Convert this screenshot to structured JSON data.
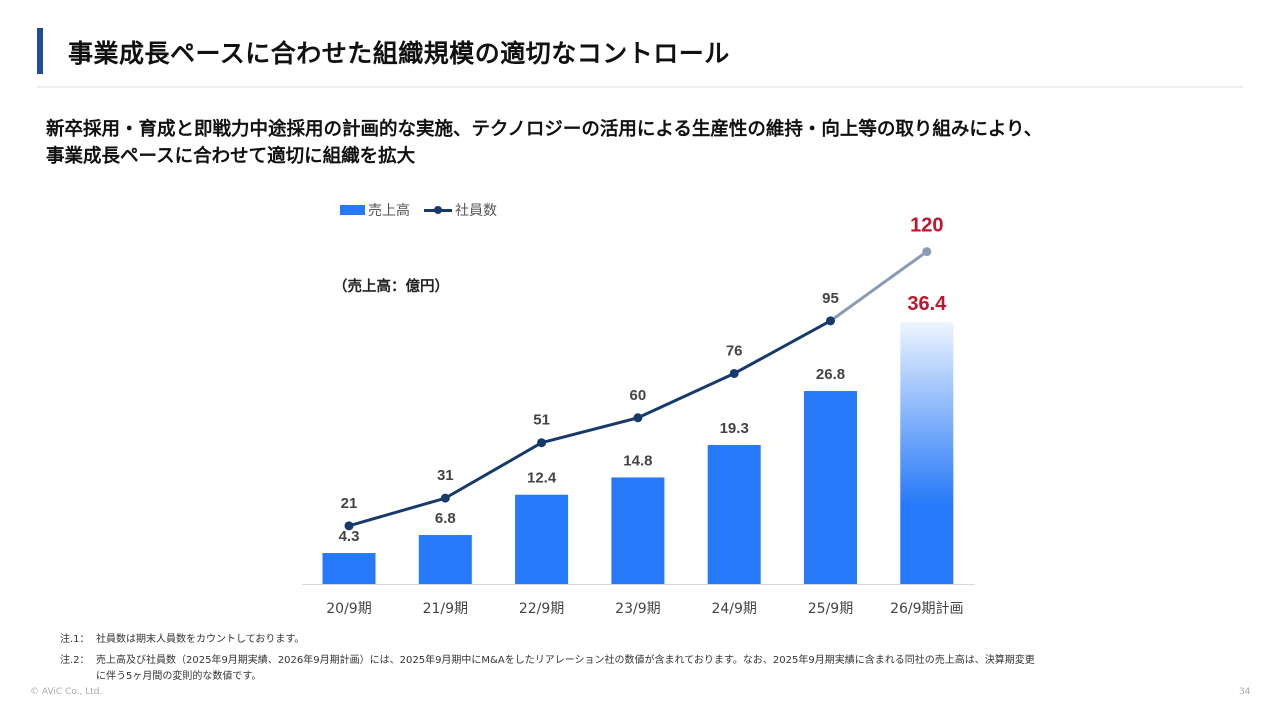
{
  "header": {
    "title": "事業成長ペースに合わせた組織規模の適切なコントロール"
  },
  "lead": {
    "line1": "新卒採用・育成と即戦力中途採用の計画的な実施、テクノロジーの活用による生産性の維持・向上等の取り組みにより、",
    "line2": "事業成長ペースに合わせて適切に組織を拡大"
  },
  "chart_data": {
    "type": "bar",
    "title": "",
    "unit_label": "（売上高：億円）",
    "categories": [
      "20/9期",
      "21/9期",
      "22/9期",
      "23/9期",
      "24/9期",
      "25/9期",
      "26/9期計画"
    ],
    "series": [
      {
        "name": "売上高",
        "type": "bar",
        "color": "#2679f8",
        "values": [
          4.3,
          6.8,
          12.4,
          14.8,
          19.3,
          26.8,
          36.4
        ],
        "labels": [
          "4.3",
          "6.8",
          "12.4",
          "14.8",
          "19.3",
          "26.8",
          "36.4"
        ]
      },
      {
        "name": "社員数",
        "type": "line",
        "color": "#163a6b",
        "values": [
          21,
          31,
          51,
          60,
          76,
          95,
          120
        ],
        "labels": [
          "21",
          "31",
          "51",
          "60",
          "76",
          "95",
          "120"
        ]
      }
    ],
    "forecast_index": 6,
    "forecast_label_color": "#c0162c",
    "forecast_line_color": "#8a9bb5",
    "legend": [
      "売上高",
      "社員数"
    ],
    "legend_position": "top-left",
    "xlabel": "",
    "ylabel": "",
    "grid": false
  },
  "notes": [
    {
      "label": "注.1：",
      "text": "社員数は期末人員数をカウントしております。"
    },
    {
      "label": "注.2：",
      "text": "売上高及び社員数（2025年9月期実績、2026年9月期計画）には、2025年9月期中にM&Aをしたリアレーション社の数値が含まれております。なお、2025年9月期実績に含まれる同社の売上高は、決算期変更",
      "cont": "に伴う5ヶ月間の変則的な数値です。"
    }
  ],
  "footer": {
    "copyright": "© AViC Co., Ltd.",
    "page_number": "34"
  }
}
